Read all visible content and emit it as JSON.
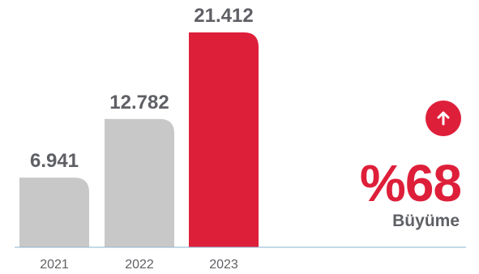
{
  "chart_data": {
    "type": "bar",
    "categories": [
      "2021",
      "2022",
      "2023"
    ],
    "values": [
      6941,
      12782,
      21412
    ],
    "value_labels": [
      "6.941",
      "12.782",
      "21.412"
    ],
    "title": "",
    "xlabel": "",
    "ylabel": "",
    "ylim": [
      0,
      21412
    ],
    "grid": false,
    "legend": "none"
  },
  "colors": {
    "bar_default": "#c8c8c8",
    "bar_highlight": "#de1f3a",
    "baseline": "#8eb4cf",
    "value_label": "#5f6065",
    "category_label": "#5f6065",
    "growth_value": "#de1f3a",
    "growth_label": "#5f6065"
  },
  "highlight_index": 2,
  "growth": {
    "value": "%68",
    "label": "Büyüme",
    "icon": "arrow-up-icon"
  }
}
